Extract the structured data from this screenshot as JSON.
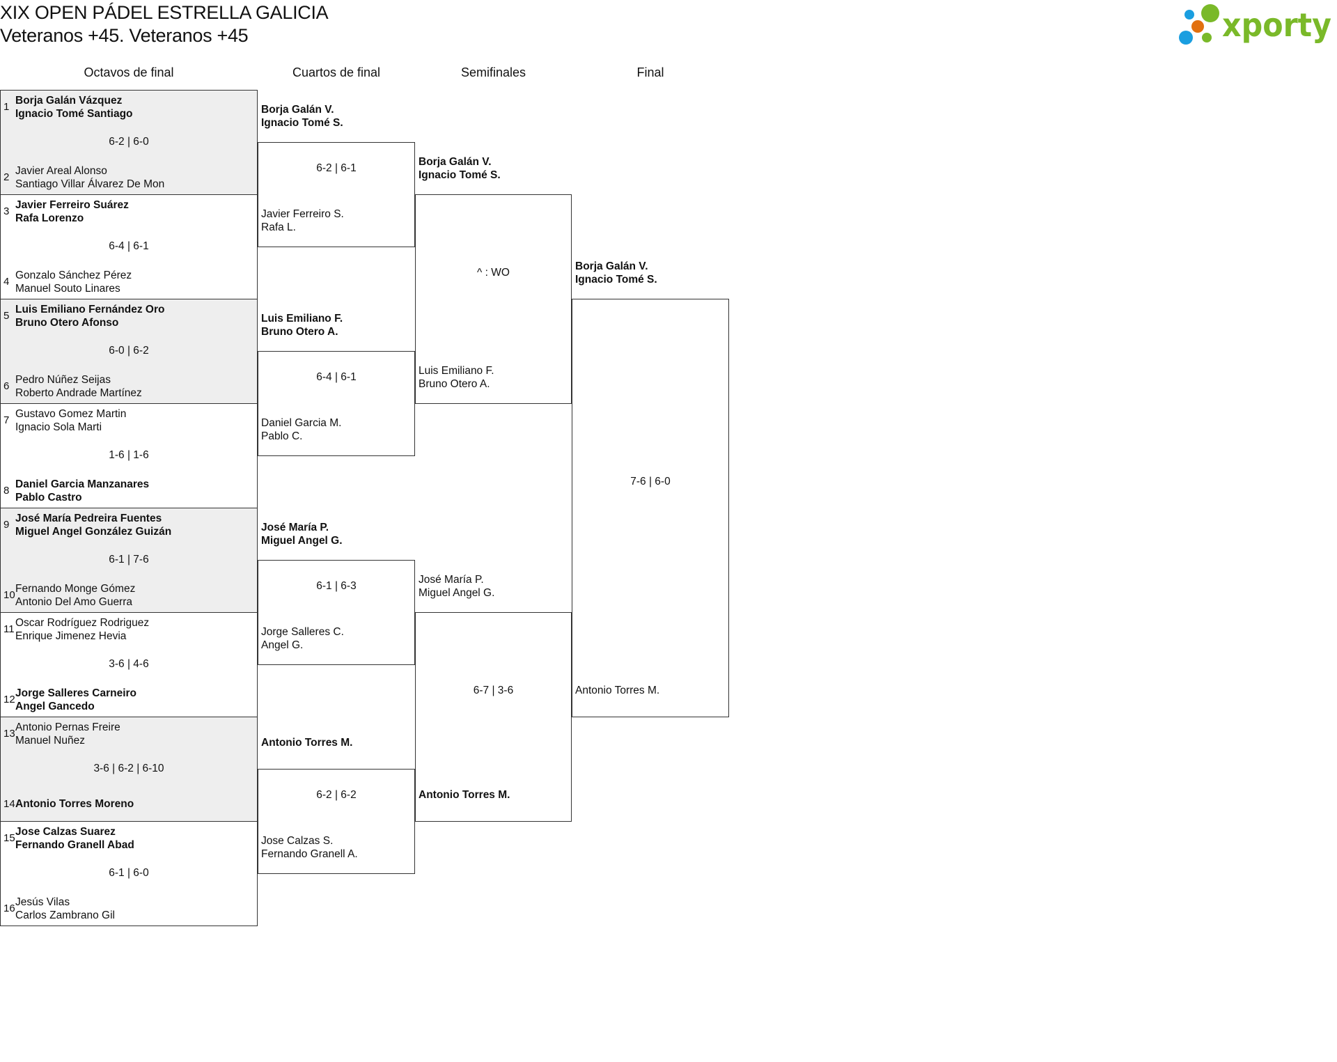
{
  "header": {
    "title": "XIX OPEN PÁDEL ESTRELLA GALICIA",
    "subtitle": "Veteranos +45. Veteranos +45"
  },
  "logo": {
    "text": "xporty",
    "colors": {
      "green": "#7ab929",
      "blue": "#1a9ee0",
      "orange": "#e2700f"
    }
  },
  "colors": {
    "shaded": "#eeeeee",
    "border": "#333333"
  },
  "rounds": [
    {
      "title": "Octavos de final",
      "matches": [
        {
          "score": "6-2 | 6-0",
          "teams": [
            {
              "seed": "1",
              "players": [
                "Borja Galán Vázquez",
                "Ignacio Tomé Santiago"
              ],
              "winner": true
            },
            {
              "seed": "2",
              "players": [
                "Javier Areal Alonso",
                "Santiago Villar Álvarez De Mon"
              ],
              "winner": false
            }
          ]
        },
        {
          "score": "6-4 | 6-1",
          "teams": [
            {
              "seed": "3",
              "players": [
                "Javier Ferreiro Suárez",
                "Rafa Lorenzo"
              ],
              "winner": true
            },
            {
              "seed": "4",
              "players": [
                "Gonzalo Sánchez Pérez",
                "Manuel Souto Linares"
              ],
              "winner": false
            }
          ]
        },
        {
          "score": "6-0 | 6-2",
          "teams": [
            {
              "seed": "5",
              "players": [
                "Luis Emiliano Fernández Oro",
                "Bruno Otero Afonso"
              ],
              "winner": true
            },
            {
              "seed": "6",
              "players": [
                "Pedro Núñez Seijas",
                "Roberto Andrade Martínez"
              ],
              "winner": false
            }
          ]
        },
        {
          "score": "1-6 | 1-6",
          "teams": [
            {
              "seed": "7",
              "players": [
                "Gustavo Gomez Martin",
                "Ignacio Sola Marti"
              ],
              "winner": false
            },
            {
              "seed": "8",
              "players": [
                "Daniel Garcia Manzanares",
                "Pablo Castro"
              ],
              "winner": true
            }
          ]
        },
        {
          "score": "6-1 | 7-6",
          "teams": [
            {
              "seed": "9",
              "players": [
                "José María Pedreira Fuentes",
                "Miguel Angel González Guizán"
              ],
              "winner": true
            },
            {
              "seed": "10",
              "players": [
                "Fernando Monge Gómez",
                "Antonio Del Amo Guerra"
              ],
              "winner": false
            }
          ]
        },
        {
          "score": "3-6 | 4-6",
          "teams": [
            {
              "seed": "11",
              "players": [
                "Oscar Rodríguez Rodriguez",
                "Enrique Jimenez Hevia"
              ],
              "winner": false
            },
            {
              "seed": "12",
              "players": [
                "Jorge Salleres Carneiro",
                "Angel Gancedo"
              ],
              "winner": true
            }
          ]
        },
        {
          "score": "3-6 | 6-2 | 6-10",
          "teams": [
            {
              "seed": "13",
              "players": [
                "Antonio Pernas Freire",
                "Manuel Nuñez"
              ],
              "winner": false
            },
            {
              "seed": "14",
              "players": [
                "Antonio Torres Moreno"
              ],
              "winner": true
            }
          ]
        },
        {
          "score": "6-1 | 6-0",
          "teams": [
            {
              "seed": "15",
              "players": [
                "Jose Calzas Suarez",
                "Fernando Granell Abad"
              ],
              "winner": true
            },
            {
              "seed": "16",
              "players": [
                "Jesús Vilas",
                "Carlos Zambrano Gil"
              ],
              "winner": false
            }
          ]
        }
      ]
    },
    {
      "title": "Cuartos de final",
      "matches": [
        {
          "score": "6-2 | 6-1",
          "teams": [
            {
              "players": [
                "Borja Galán V.",
                "Ignacio Tomé S."
              ],
              "winner": true
            },
            {
              "players": [
                "Javier Ferreiro S.",
                "Rafa L."
              ],
              "winner": false
            }
          ]
        },
        {
          "score": "6-4 | 6-1",
          "teams": [
            {
              "players": [
                "Luis Emiliano F.",
                "Bruno Otero A."
              ],
              "winner": true
            },
            {
              "players": [
                "Daniel Garcia M.",
                "Pablo C."
              ],
              "winner": false
            }
          ]
        },
        {
          "score": "6-1 | 6-3",
          "teams": [
            {
              "players": [
                "José María P.",
                "Miguel Angel G."
              ],
              "winner": true
            },
            {
              "players": [
                "Jorge Salleres C.",
                "Angel G."
              ],
              "winner": false
            }
          ]
        },
        {
          "score": "6-2 | 6-2",
          "teams": [
            {
              "players": [
                "Antonio Torres M."
              ],
              "winner": true
            },
            {
              "players": [
                "Jose Calzas S.",
                "Fernando Granell A."
              ],
              "winner": false
            }
          ]
        }
      ]
    },
    {
      "title": "Semifinales",
      "matches": [
        {
          "score": "^ : WO",
          "teams": [
            {
              "players": [
                "Borja Galán V.",
                "Ignacio Tomé S."
              ],
              "winner": true
            },
            {
              "players": [
                "Luis Emiliano F.",
                "Bruno Otero A."
              ],
              "winner": false
            }
          ]
        },
        {
          "score": "6-7 | 3-6",
          "teams": [
            {
              "players": [
                "José María P.",
                "Miguel Angel G."
              ],
              "winner": false
            },
            {
              "players": [
                "Antonio Torres M."
              ],
              "winner": true
            }
          ]
        }
      ]
    },
    {
      "title": "Final",
      "matches": [
        {
          "score": "7-6 | 6-0",
          "teams": [
            {
              "players": [
                "Borja Galán V.",
                "Ignacio Tomé S."
              ],
              "winner": true
            },
            {
              "players": [
                "Antonio Torres M."
              ],
              "winner": false
            }
          ]
        }
      ]
    }
  ]
}
